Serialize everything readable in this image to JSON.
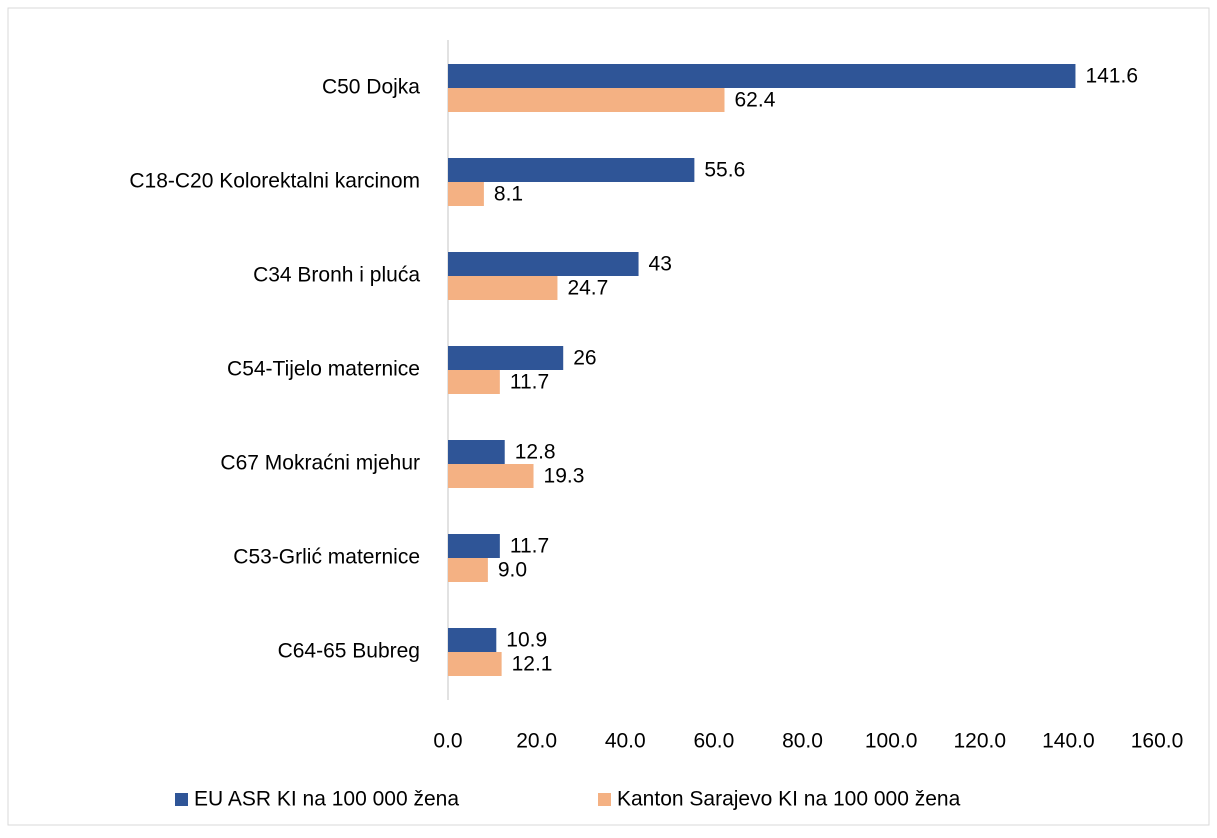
{
  "chart_data": {
    "type": "bar",
    "orientation": "horizontal",
    "categories": [
      "C50 Dojka",
      "C18-C20 Kolorektalni karcinom",
      "C34 Bronh i pluća",
      "C54-Tijelo maternice",
      "C67 Mokraćni mjehur",
      "C53-Grlić maternice",
      "C64-65 Bubreg"
    ],
    "series": [
      {
        "name": "EU ASR KI na 100 000 žena",
        "color": "#2f5597",
        "values": [
          141.6,
          55.6,
          43,
          26,
          12.8,
          11.7,
          10.9
        ]
      },
      {
        "name": "Kanton Sarajevo KI na 100 000 žena",
        "color": "#f4b183",
        "values": [
          62.4,
          8.1,
          24.7,
          11.7,
          19.3,
          9.0,
          12.1
        ],
        "value_labels": [
          "62.4",
          "8.1",
          "24.7",
          "11.7",
          "19.3",
          "9.0",
          "12.1"
        ]
      }
    ],
    "xlim": [
      0,
      160
    ],
    "xticks": [
      {
        "value": 0,
        "label": "0.0"
      },
      {
        "value": 20,
        "label": "20.0"
      },
      {
        "value": 40,
        "label": "40.0"
      },
      {
        "value": 60,
        "label": "60.0"
      },
      {
        "value": 80,
        "label": "80.0"
      },
      {
        "value": 100,
        "label": "100.0"
      },
      {
        "value": 120,
        "label": "120.0"
      },
      {
        "value": 140,
        "label": "140.0"
      },
      {
        "value": 160,
        "label": "160.0"
      }
    ],
    "legend": "bottom",
    "grid": false
  }
}
